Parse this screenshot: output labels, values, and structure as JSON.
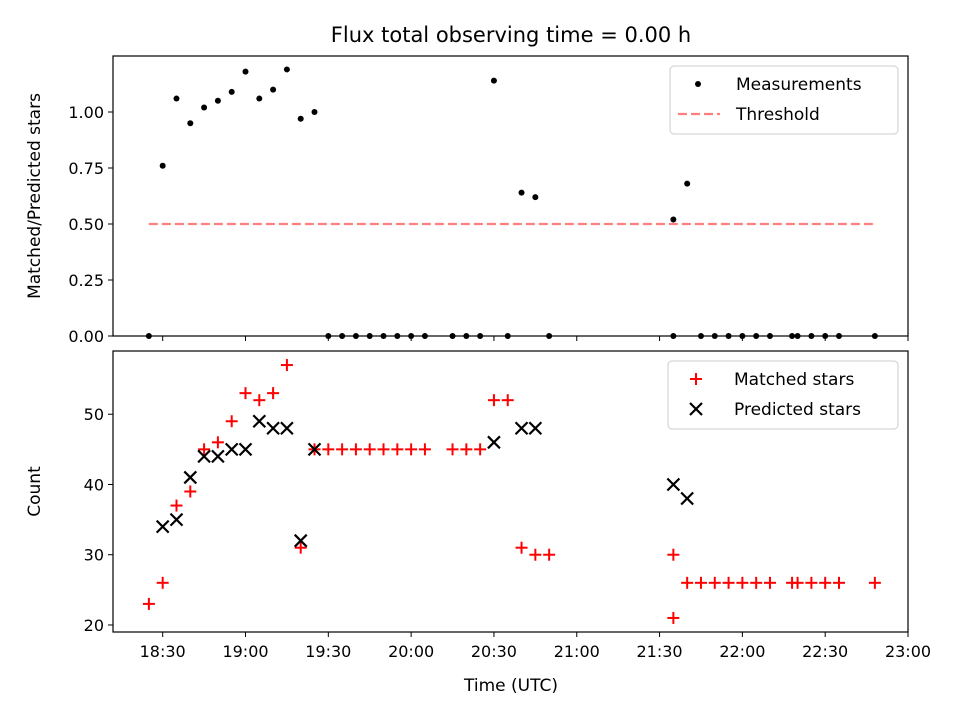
{
  "chart_data": [
    {
      "type": "scatter",
      "title": "Flux total observing time = 0.00 h",
      "xlabel": "",
      "ylabel": "Matched/Predicted stars",
      "xlim": [
        "18:12",
        "23:00"
      ],
      "ylim": [
        0,
        1.25
      ],
      "yticks": [
        "0.00",
        "0.25",
        "0.50",
        "0.75",
        "1.00"
      ],
      "grid": false,
      "legend": "top-right",
      "series": [
        {
          "name": "Measurements",
          "marker": "dot",
          "color": "#000000",
          "points": [
            [
              "18:25",
              0
            ],
            [
              "18:30",
              0.76
            ],
            [
              "18:35",
              1.06
            ],
            [
              "18:40",
              0.95
            ],
            [
              "18:45",
              1.02
            ],
            [
              "18:50",
              1.05
            ],
            [
              "18:55",
              1.09
            ],
            [
              "19:00",
              1.18
            ],
            [
              "19:05",
              1.06
            ],
            [
              "19:10",
              1.1
            ],
            [
              "19:15",
              1.19
            ],
            [
              "19:20",
              0.97
            ],
            [
              "19:25",
              1.0
            ],
            [
              "19:30",
              0
            ],
            [
              "19:35",
              0
            ],
            [
              "19:40",
              0
            ],
            [
              "19:45",
              0
            ],
            [
              "19:50",
              0
            ],
            [
              "19:55",
              0
            ],
            [
              "20:00",
              0
            ],
            [
              "20:05",
              0
            ],
            [
              "20:15",
              0
            ],
            [
              "20:20",
              0
            ],
            [
              "20:25",
              0
            ],
            [
              "20:30",
              1.14
            ],
            [
              "20:35",
              0
            ],
            [
              "20:40",
              0.64
            ],
            [
              "20:45",
              0.62
            ],
            [
              "20:50",
              0
            ],
            [
              "21:35",
              0.52
            ],
            [
              "21:35",
              0
            ],
            [
              "21:40",
              0.68
            ],
            [
              "21:45",
              0
            ],
            [
              "21:50",
              0
            ],
            [
              "21:55",
              0
            ],
            [
              "22:00",
              0
            ],
            [
              "22:05",
              0
            ],
            [
              "22:10",
              0
            ],
            [
              "22:18",
              0
            ],
            [
              "22:20",
              0
            ],
            [
              "22:25",
              0
            ],
            [
              "22:30",
              0
            ],
            [
              "22:35",
              0
            ],
            [
              "22:48",
              0
            ]
          ]
        },
        {
          "name": "Threshold",
          "marker": "dashed-line",
          "color": "#ff7f7f",
          "points": [
            [
              "18:25",
              0.5
            ],
            [
              "22:48",
              0.5
            ]
          ]
        }
      ]
    },
    {
      "type": "scatter",
      "title": "",
      "xlabel": "Time (UTC)",
      "ylabel": "Count",
      "xlim": [
        "18:12",
        "23:00"
      ],
      "ylim": [
        19,
        59
      ],
      "xticks": [
        "18:30",
        "19:00",
        "19:30",
        "20:00",
        "20:30",
        "21:00",
        "21:30",
        "22:00",
        "22:30",
        "23:00"
      ],
      "yticks": [
        "20",
        "30",
        "40",
        "50"
      ],
      "grid": false,
      "legend": "top-right",
      "series": [
        {
          "name": "Matched stars",
          "marker": "plus",
          "color": "#ff0000",
          "points": [
            [
              "18:25",
              23
            ],
            [
              "18:30",
              26
            ],
            [
              "18:35",
              37
            ],
            [
              "18:40",
              39
            ],
            [
              "18:45",
              45
            ],
            [
              "18:50",
              46
            ],
            [
              "18:55",
              49
            ],
            [
              "19:00",
              53
            ],
            [
              "19:05",
              52
            ],
            [
              "19:10",
              53
            ],
            [
              "19:15",
              57
            ],
            [
              "19:20",
              31
            ],
            [
              "19:25",
              45
            ],
            [
              "19:30",
              45
            ],
            [
              "19:35",
              45
            ],
            [
              "19:40",
              45
            ],
            [
              "19:45",
              45
            ],
            [
              "19:50",
              45
            ],
            [
              "19:55",
              45
            ],
            [
              "20:00",
              45
            ],
            [
              "20:05",
              45
            ],
            [
              "20:15",
              45
            ],
            [
              "20:20",
              45
            ],
            [
              "20:25",
              45
            ],
            [
              "20:30",
              52
            ],
            [
              "20:35",
              52
            ],
            [
              "20:40",
              31
            ],
            [
              "20:45",
              30
            ],
            [
              "20:50",
              30
            ],
            [
              "21:35",
              30
            ],
            [
              "21:35",
              21
            ],
            [
              "21:40",
              26
            ],
            [
              "21:45",
              26
            ],
            [
              "21:50",
              26
            ],
            [
              "21:55",
              26
            ],
            [
              "22:00",
              26
            ],
            [
              "22:05",
              26
            ],
            [
              "22:10",
              26
            ],
            [
              "22:18",
              26
            ],
            [
              "22:20",
              26
            ],
            [
              "22:25",
              26
            ],
            [
              "22:30",
              26
            ],
            [
              "22:35",
              26
            ],
            [
              "22:48",
              26
            ]
          ]
        },
        {
          "name": "Predicted stars",
          "marker": "x",
          "color": "#000000",
          "points": [
            [
              "18:30",
              34
            ],
            [
              "18:35",
              35
            ],
            [
              "18:40",
              41
            ],
            [
              "18:45",
              44
            ],
            [
              "18:50",
              44
            ],
            [
              "18:55",
              45
            ],
            [
              "19:00",
              45
            ],
            [
              "19:05",
              49
            ],
            [
              "19:10",
              48
            ],
            [
              "19:15",
              48
            ],
            [
              "19:20",
              32
            ],
            [
              "19:25",
              45
            ],
            [
              "20:30",
              46
            ],
            [
              "20:40",
              48
            ],
            [
              "20:45",
              48
            ],
            [
              "21:35",
              40
            ],
            [
              "21:40",
              38
            ]
          ]
        }
      ]
    }
  ]
}
